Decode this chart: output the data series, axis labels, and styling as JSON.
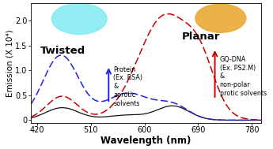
{
  "xlim": [
    410,
    795
  ],
  "ylim": [
    -0.05,
    2.35
  ],
  "yticks": [
    0,
    0.5,
    1.0,
    1.5,
    2.0
  ],
  "xticks": [
    420,
    510,
    600,
    690,
    780
  ],
  "xlabel": "Wavelength (nm)",
  "ylabel": "Emission (X 10⁴)",
  "black_color": "#111111",
  "blue_color": "#2222dd",
  "red_color": "#cc0000",
  "label_twisted": "Twisted",
  "label_planar": "Planar",
  "label_protein": "Protein\n(Ex. BSA)\n&\naprotic\nsolvents",
  "label_gqdna": "GQ-DNA\n(Ex. PS2.M)\n&\nnon-polar\nprotic solvents",
  "bg_left_color": "#80eaf0",
  "bg_right_color": "#e8a830",
  "tick_fontsize": 7,
  "axis_fontsize": 8
}
